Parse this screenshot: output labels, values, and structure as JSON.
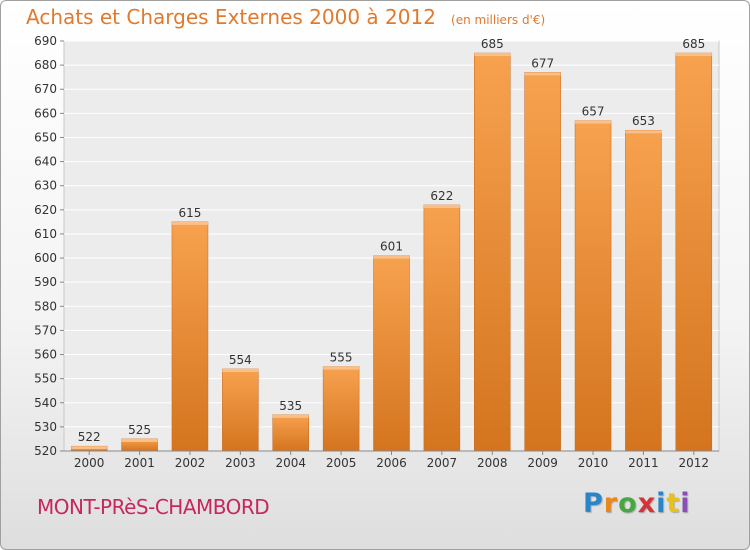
{
  "chart_data": {
    "type": "bar",
    "title": "Achats et Charges Externes 2000 à 2012",
    "subtitle": "(en milliers d'€)",
    "categories": [
      "2000",
      "2001",
      "2002",
      "2003",
      "2004",
      "2005",
      "2006",
      "2007",
      "2008",
      "2009",
      "2010",
      "2011",
      "2012"
    ],
    "values": [
      522,
      525,
      615,
      554,
      535,
      555,
      601,
      622,
      685,
      677,
      657,
      653,
      685
    ],
    "ylim": [
      520,
      690
    ],
    "yticks": [
      520,
      530,
      540,
      550,
      560,
      570,
      580,
      590,
      600,
      610,
      620,
      630,
      640,
      650,
      660,
      670,
      680,
      690
    ],
    "grid": true,
    "bar_color": "#f0923c",
    "xlabel": "",
    "ylabel": ""
  },
  "footer": {
    "commune": "MONT-PRèS-CHAMBORD",
    "logo": "Proxiti",
    "logo_letters": [
      "P",
      "r",
      "o",
      "x",
      "i",
      "t",
      "i"
    ]
  }
}
